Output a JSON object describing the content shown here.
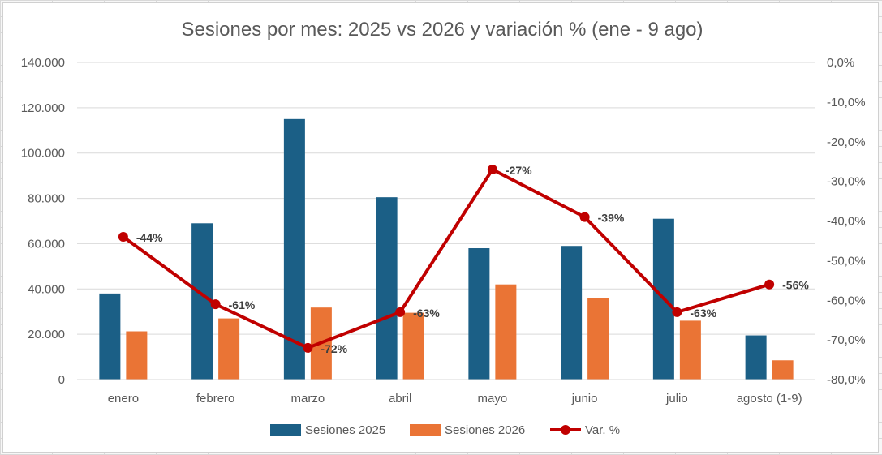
{
  "chart_data": {
    "type": "bar",
    "title": "Sesiones por mes: 2025 vs 2026 y variación % (ene - 9 ago)",
    "categories": [
      "enero",
      "febrero",
      "marzo",
      "abril",
      "mayo",
      "junio",
      "julio",
      "agosto (1-9)"
    ],
    "series": [
      {
        "name": "Sesiones 2025",
        "type": "bar",
        "axis": "left",
        "color": "#1b5f86",
        "values": [
          38000,
          69000,
          115000,
          80500,
          58000,
          59000,
          71000,
          19500
        ]
      },
      {
        "name": "Sesiones 2026",
        "type": "bar",
        "axis": "left",
        "color": "#ea7435",
        "values": [
          21300,
          27000,
          31800,
          29500,
          42000,
          36000,
          26000,
          8500
        ]
      },
      {
        "name": "Var. %",
        "type": "line",
        "axis": "right",
        "color": "#c00000",
        "values": [
          -44,
          -61,
          -72,
          -63,
          -27,
          -39,
          -63,
          -56
        ],
        "labels": [
          "-44%",
          "-61%",
          "-72%",
          "-63%",
          "-27%",
          "-39%",
          "-63%",
          "-56%"
        ]
      }
    ],
    "y_left": {
      "min": 0,
      "max": 140000,
      "step": 20000,
      "tick_labels": [
        "0",
        "20.000",
        "40.000",
        "60.000",
        "80.000",
        "100.000",
        "120.000",
        "140.000"
      ]
    },
    "y_right": {
      "min": -80,
      "max": 0,
      "step": 10,
      "tick_labels": [
        "-80,0%",
        "-70,0%",
        "-60,0%",
        "-50,0%",
        "-40,0%",
        "-30,0%",
        "-20,0%",
        "-10,0%",
        "0,0%"
      ]
    },
    "grid": true,
    "legend": "bottom"
  }
}
